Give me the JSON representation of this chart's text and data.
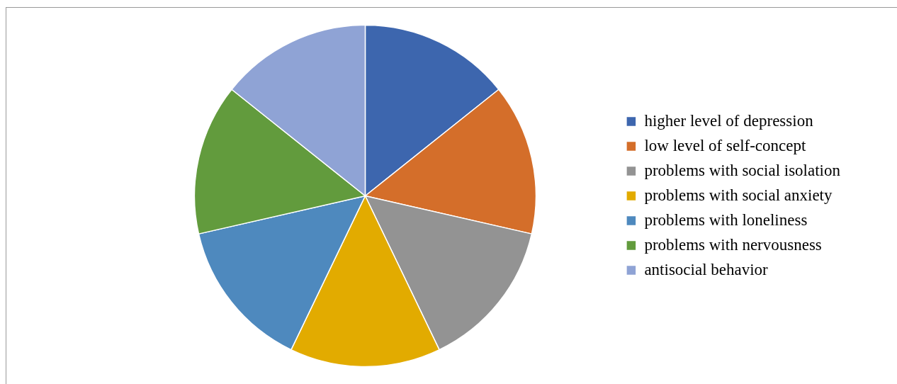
{
  "chart_data": {
    "type": "pie",
    "categories": [
      "higher level of depression",
      "low level of self-concept",
      "problems with social isolation",
      "problems with social anxiety",
      "problems with loneliness",
      "problems with nervousness",
      "antisocial behavior"
    ],
    "values": [
      14.2857,
      14.2857,
      14.2857,
      14.2857,
      14.2857,
      14.2857,
      14.2857
    ],
    "colors": [
      "#3d66ae",
      "#d46e2a",
      "#939393",
      "#e2ab00",
      "#4e89be",
      "#629b3d",
      "#8fa3d5"
    ],
    "legend": "right"
  }
}
